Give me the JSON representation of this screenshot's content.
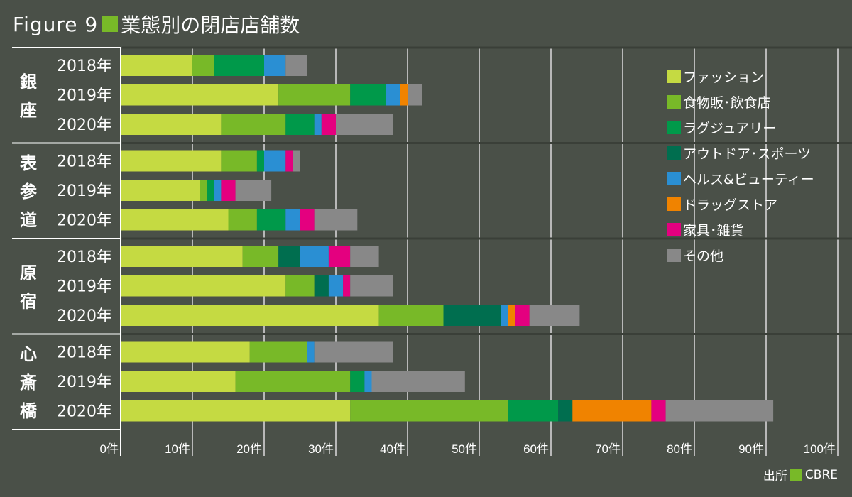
{
  "title": {
    "figure": "Figure 9",
    "text": "業態別の閉店店舗数",
    "accent": "#78b928"
  },
  "source": {
    "label": "出所",
    "name": "CBRE"
  },
  "chart_data": {
    "type": "bar",
    "orientation": "horizontal",
    "stacked": true,
    "title": "業態別の閉店店舗数",
    "xlim": [
      0,
      100
    ],
    "x_ticks": [
      "0件",
      "10件",
      "20件",
      "30件",
      "40件",
      "50件",
      "60件",
      "70件",
      "80件",
      "90件",
      "100件"
    ],
    "x_tick_values": [
      0,
      10,
      20,
      30,
      40,
      50,
      60,
      70,
      80,
      90,
      100
    ],
    "grid": true,
    "legend_position": "top-right",
    "series": [
      {
        "name": "ファッション",
        "color": "#c5da42"
      },
      {
        "name": "食物販･飲食店",
        "color": "#78b928"
      },
      {
        "name": "ラグジュアリー",
        "color": "#00994a"
      },
      {
        "name": "アウトドア･スポーツ",
        "color": "#006e4f"
      },
      {
        "name": "ヘルス&ビューティー",
        "color": "#2a8fd3"
      },
      {
        "name": "ドラッグストア",
        "color": "#f08300"
      },
      {
        "name": "家具･雑貨",
        "color": "#e4007f"
      },
      {
        "name": "その他",
        "color": "#888888"
      }
    ],
    "groups": [
      {
        "name": "銀座",
        "rows": [
          {
            "year": "2018年",
            "values": [
              10,
              3,
              7,
              0,
              3,
              0,
              0,
              3
            ]
          },
          {
            "year": "2019年",
            "values": [
              22,
              10,
              5,
              0,
              2,
              1,
              0,
              2
            ]
          },
          {
            "year": "2020年",
            "values": [
              14,
              9,
              4,
              0,
              1,
              0,
              2,
              8
            ]
          }
        ]
      },
      {
        "name": "表参道",
        "rows": [
          {
            "year": "2018年",
            "values": [
              14,
              5,
              1,
              0,
              3,
              0,
              1,
              1
            ]
          },
          {
            "year": "2019年",
            "values": [
              11,
              1,
              1,
              0,
              1,
              0,
              2,
              5
            ]
          },
          {
            "year": "2020年",
            "values": [
              15,
              4,
              4,
              0,
              2,
              0,
              2,
              6
            ]
          }
        ]
      },
      {
        "name": "原宿",
        "rows": [
          {
            "year": "2018年",
            "values": [
              17,
              5,
              0,
              3,
              4,
              0,
              3,
              4
            ]
          },
          {
            "year": "2019年",
            "values": [
              23,
              4,
              0,
              2,
              2,
              0,
              1,
              6
            ]
          },
          {
            "year": "2020年",
            "values": [
              36,
              9,
              0,
              8,
              1,
              1,
              2,
              7
            ]
          }
        ]
      },
      {
        "name": "心斎橋",
        "rows": [
          {
            "year": "2018年",
            "values": [
              18,
              8,
              0,
              0,
              1,
              0,
              0,
              11
            ]
          },
          {
            "year": "2019年",
            "values": [
              16,
              16,
              2,
              0,
              1,
              0,
              0,
              13
            ]
          },
          {
            "year": "2020年",
            "values": [
              32,
              22,
              7,
              2,
              0,
              11,
              2,
              15
            ]
          }
        ]
      }
    ]
  }
}
